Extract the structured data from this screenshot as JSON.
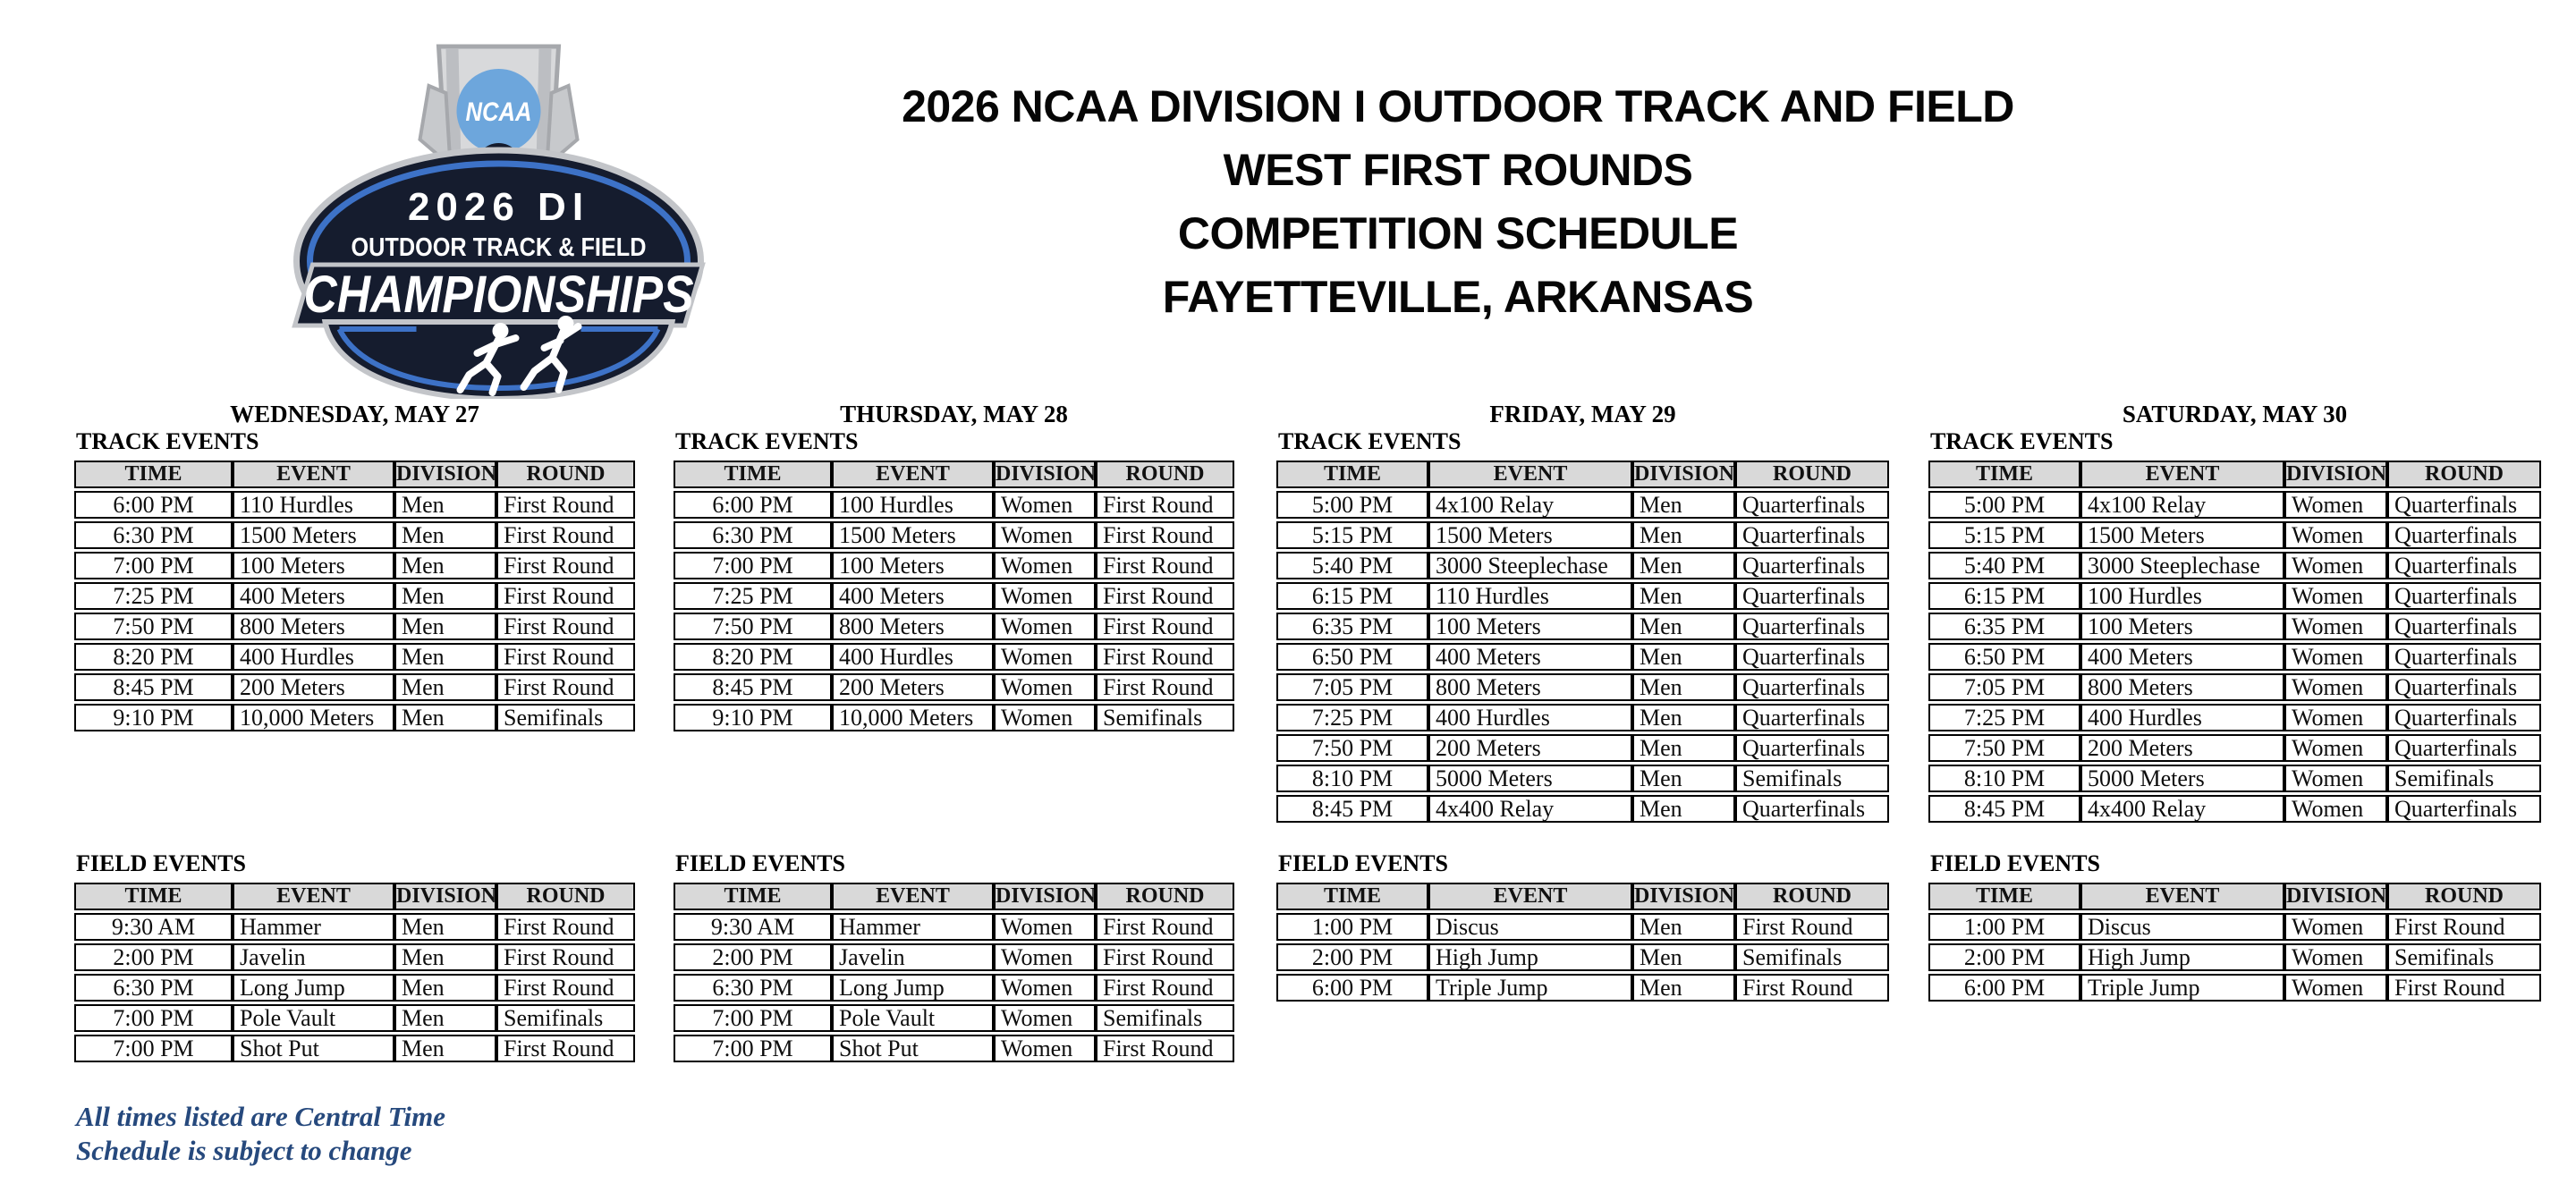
{
  "title": {
    "lines": [
      "2026 NCAA DIVISION I OUTDOOR TRACK AND FIELD",
      "WEST FIRST ROUNDS",
      "COMPETITION SCHEDULE",
      "FAYETTEVILLE, ARKANSAS"
    ]
  },
  "logo": {
    "ncaa": "NCAA",
    "year_division": "2026 DI",
    "sport": "OUTDOOR TRACK & FIELD",
    "championships": "CHAMPIONSHIPS"
  },
  "labels": {
    "track_events": "TRACK EVENTS",
    "field_events": "FIELD EVENTS"
  },
  "table_headers": [
    "TIME",
    "EVENT",
    "DIVISION",
    "ROUND"
  ],
  "days": [
    {
      "name": "WEDNESDAY, MAY 27",
      "track": [
        [
          "6:00 PM",
          "110 Hurdles",
          "Men",
          "First Round"
        ],
        [
          "6:30 PM",
          "1500 Meters",
          "Men",
          "First Round"
        ],
        [
          "7:00 PM",
          "100 Meters",
          "Men",
          "First Round"
        ],
        [
          "7:25 PM",
          "400 Meters",
          "Men",
          "First Round"
        ],
        [
          "7:50 PM",
          "800 Meters",
          "Men",
          "First Round"
        ],
        [
          "8:20 PM",
          "400 Hurdles",
          "Men",
          "First Round"
        ],
        [
          "8:45 PM",
          "200 Meters",
          "Men",
          "First Round"
        ],
        [
          "9:10 PM",
          "10,000 Meters",
          "Men",
          "Semifinals"
        ]
      ],
      "field": [
        [
          "9:30 AM",
          "Hammer",
          "Men",
          "First Round"
        ],
        [
          "2:00 PM",
          "Javelin",
          "Men",
          "First Round"
        ],
        [
          "6:30 PM",
          "Long Jump",
          "Men",
          "First Round"
        ],
        [
          "7:00 PM",
          "Pole Vault",
          "Men",
          "Semifinals"
        ],
        [
          "7:00 PM",
          "Shot Put",
          "Men",
          "First Round"
        ]
      ]
    },
    {
      "name": "THURSDAY, MAY 28",
      "track": [
        [
          "6:00 PM",
          "100 Hurdles",
          "Women",
          "First Round"
        ],
        [
          "6:30 PM",
          "1500 Meters",
          "Women",
          "First Round"
        ],
        [
          "7:00 PM",
          "100 Meters",
          "Women",
          "First Round"
        ],
        [
          "7:25 PM",
          "400 Meters",
          "Women",
          "First Round"
        ],
        [
          "7:50 PM",
          "800 Meters",
          "Women",
          "First Round"
        ],
        [
          "8:20 PM",
          "400 Hurdles",
          "Women",
          "First Round"
        ],
        [
          "8:45 PM",
          "200 Meters",
          "Women",
          "First Round"
        ],
        [
          "9:10 PM",
          "10,000 Meters",
          "Women",
          "Semifinals"
        ]
      ],
      "field": [
        [
          "9:30 AM",
          "Hammer",
          "Women",
          "First Round"
        ],
        [
          "2:00 PM",
          "Javelin",
          "Women",
          "First Round"
        ],
        [
          "6:30 PM",
          "Long Jump",
          "Women",
          "First Round"
        ],
        [
          "7:00 PM",
          "Pole Vault",
          "Women",
          "Semifinals"
        ],
        [
          "7:00 PM",
          "Shot Put",
          "Women",
          "First Round"
        ]
      ]
    },
    {
      "name": "FRIDAY, MAY 29",
      "track": [
        [
          "5:00 PM",
          "4x100 Relay",
          "Men",
          "Quarterfinals"
        ],
        [
          "5:15 PM",
          "1500 Meters",
          "Men",
          "Quarterfinals"
        ],
        [
          "5:40 PM",
          "3000 Steeplechase",
          "Men",
          "Quarterfinals"
        ],
        [
          "6:15 PM",
          "110 Hurdles",
          "Men",
          "Quarterfinals"
        ],
        [
          "6:35 PM",
          "100 Meters",
          "Men",
          "Quarterfinals"
        ],
        [
          "6:50 PM",
          "400 Meters",
          "Men",
          "Quarterfinals"
        ],
        [
          "7:05 PM",
          "800 Meters",
          "Men",
          "Quarterfinals"
        ],
        [
          "7:25 PM",
          "400 Hurdles",
          "Men",
          "Quarterfinals"
        ],
        [
          "7:50 PM",
          "200 Meters",
          "Men",
          "Quarterfinals"
        ],
        [
          "8:10 PM",
          "5000 Meters",
          "Men",
          "Semifinals"
        ],
        [
          "8:45 PM",
          "4x400 Relay",
          "Men",
          "Quarterfinals"
        ]
      ],
      "field": [
        [
          "1:00 PM",
          "Discus",
          "Men",
          "First Round"
        ],
        [
          "2:00 PM",
          "High Jump",
          "Men",
          "Semifinals"
        ],
        [
          "6:00 PM",
          "Triple Jump",
          "Men",
          "First Round"
        ]
      ]
    },
    {
      "name": "SATURDAY, MAY 30",
      "track": [
        [
          "5:00 PM",
          "4x100 Relay",
          "Women",
          "Quarterfinals"
        ],
        [
          "5:15 PM",
          "1500 Meters",
          "Women",
          "Quarterfinals"
        ],
        [
          "5:40 PM",
          "3000 Steeplechase",
          "Women",
          "Quarterfinals"
        ],
        [
          "6:15 PM",
          "100 Hurdles",
          "Women",
          "Quarterfinals"
        ],
        [
          "6:35 PM",
          "100 Meters",
          "Women",
          "Quarterfinals"
        ],
        [
          "6:50 PM",
          "400 Meters",
          "Women",
          "Quarterfinals"
        ],
        [
          "7:05 PM",
          "800 Meters",
          "Women",
          "Quarterfinals"
        ],
        [
          "7:25 PM",
          "400 Hurdles",
          "Women",
          "Quarterfinals"
        ],
        [
          "7:50 PM",
          "200 Meters",
          "Women",
          "Quarterfinals"
        ],
        [
          "8:10 PM",
          "5000 Meters",
          "Women",
          "Semifinals"
        ],
        [
          "8:45 PM",
          "4x400 Relay",
          "Women",
          "Quarterfinals"
        ]
      ],
      "field": [
        [
          "1:00 PM",
          "Discus",
          "Women",
          "First Round"
        ],
        [
          "2:00 PM",
          "High Jump",
          "Women",
          "Semifinals"
        ],
        [
          "6:00 PM",
          "Triple Jump",
          "Women",
          "First Round"
        ]
      ]
    }
  ],
  "footer": {
    "lines": [
      "All times listed are Central Time",
      "Schedule is subject to change"
    ]
  },
  "colors": {
    "header_bg": "#d9d9d9",
    "footer_blue": "#26497d",
    "logo_navy": "#151c2e",
    "logo_ring_blue": "#3d72c7",
    "logo_disc_blue": "#6da6dc",
    "logo_silver": "#d8d9db"
  }
}
